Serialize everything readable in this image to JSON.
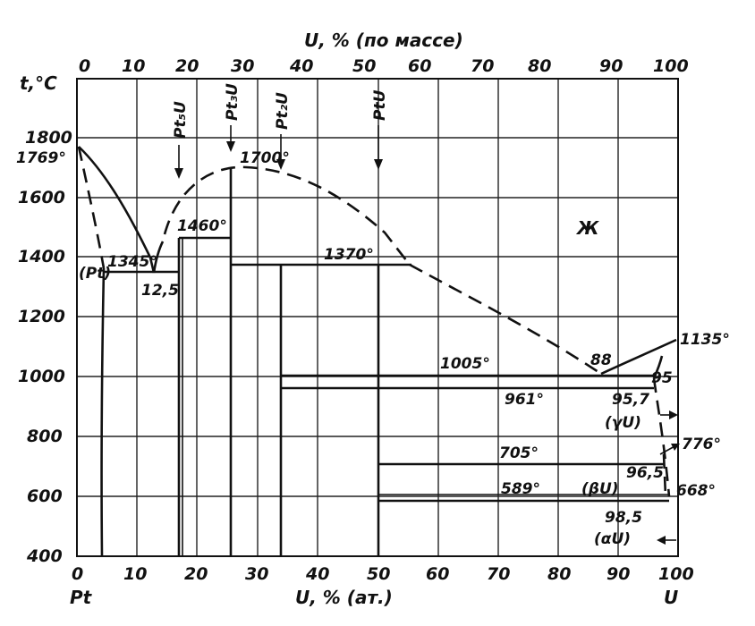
{
  "diagram": {
    "top_axis_title": "U, % (по массе)",
    "top_ticks": [
      "0",
      "10",
      "20",
      "30",
      "40",
      "50",
      "60",
      "70",
      "80",
      "90",
      "100"
    ],
    "y_axis_label": "t,°C",
    "y_ticks": [
      "1800",
      "1600",
      "1400",
      "1200",
      "1000",
      "800",
      "600",
      "400"
    ],
    "bottom_ticks": [
      "0",
      "10",
      "20",
      "30",
      "40",
      "50",
      "60",
      "70",
      "80",
      "90",
      "100"
    ],
    "bottom_axis_title": "U, % (ат.)",
    "left_element": "Pt",
    "right_element": "U",
    "compound_labels": {
      "pt5u": "Pt₅U",
      "pt3u": "Pt₃U",
      "pt2u": "Pt₂U",
      "ptu": "PtU"
    },
    "phase_labels": {
      "liquid": "Ж",
      "pt_solid": "(Pt)",
      "gamma_u": "(γU)",
      "beta_u": "(βU)",
      "alpha_u": "(αU)"
    },
    "temperature_labels": {
      "t1769": "1769°",
      "t1700": "1700°",
      "t1460": "1460°",
      "t1345": "1345°",
      "t1370": "1370°",
      "t1005": "1005°",
      "t961": "961°",
      "t705": "705°",
      "t589": "589°",
      "t1135": "1135°",
      "t776": "776°",
      "t668": "668°"
    },
    "composition_labels": {
      "c12_5": "12,5",
      "c88": "88",
      "c95": "95",
      "c95_7": "95,7",
      "c96_5": "96,5",
      "c98_5": "98,5"
    }
  }
}
